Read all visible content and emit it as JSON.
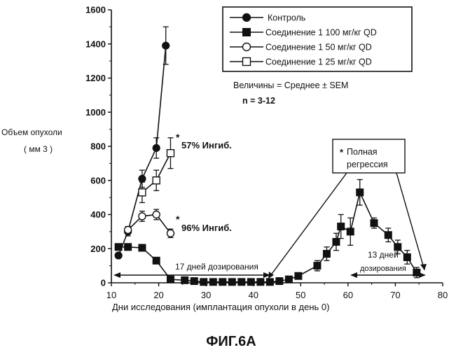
{
  "figure_label": "ФИГ.6А",
  "chart_data": {
    "type": "line",
    "xlabel": "Дни исследования (имплантация опухоли в день 0)",
    "ylabel": "Объем опухоли",
    "ylabel_unit": "( мм 3 )",
    "xlim": [
      10,
      80
    ],
    "ylim": [
      0,
      1600
    ],
    "x_ticks": [
      10,
      20,
      30,
      40,
      50,
      60,
      70,
      80
    ],
    "y_ticks": [
      0,
      200,
      400,
      600,
      800,
      1000,
      1200,
      1400,
      1600
    ],
    "legend_position": "top-right",
    "stats_note": "Величины = Среднее ± SEM",
    "n_note": "n = 3-12",
    "series": [
      {
        "name": "Контроль",
        "marker": "filled-circle",
        "x": [
          11.5,
          13.5,
          16.5,
          19.5,
          21.5
        ],
        "y": [
          160,
          300,
          610,
          790,
          1390
        ],
        "err": [
          15,
          25,
          50,
          60,
          110
        ]
      },
      {
        "name": "Соединение 1 100 мг/кг QD",
        "marker": "filled-square",
        "x": [
          11.5,
          13.5,
          16.5,
          19.5,
          22.5,
          25.5,
          27.5,
          29.5,
          31.5,
          33.5,
          35.5,
          37.5,
          39.5,
          41.5,
          43.5,
          45.5,
          47.5,
          49.5,
          53.5,
          55.5,
          57.5,
          58.5,
          60.5,
          62.5,
          65.5,
          68.5,
          70.5,
          72.5,
          74.5
        ],
        "y": [
          210,
          210,
          205,
          130,
          20,
          15,
          10,
          5,
          5,
          5,
          5,
          5,
          5,
          5,
          5,
          10,
          20,
          40,
          100,
          170,
          240,
          330,
          300,
          530,
          350,
          280,
          210,
          150,
          60
        ],
        "err": [
          10,
          10,
          10,
          10,
          5,
          5,
          5,
          5,
          5,
          5,
          5,
          5,
          5,
          5,
          5,
          5,
          5,
          10,
          30,
          40,
          50,
          70,
          80,
          75,
          30,
          40,
          40,
          40,
          30
        ]
      },
      {
        "name": "Соединение 1 50 мг/кг QD",
        "marker": "open-circle",
        "x": [
          13.5,
          16.5,
          19.5,
          22.5
        ],
        "y": [
          310,
          390,
          400,
          290
        ],
        "err": [
          20,
          30,
          30,
          25
        ]
      },
      {
        "name": "Соединение 1 25 мг/кг QD",
        "marker": "open-square",
        "x": [
          16.5,
          19.5,
          22.5
        ],
        "y": [
          530,
          600,
          760
        ],
        "err": [
          60,
          60,
          90
        ]
      }
    ],
    "annotations": {
      "inhib_57": "57% Ингиб.",
      "inhib_96": "96% Ингиб.",
      "dosing_17": "17 дней дозирования",
      "dosing_13_num": "13 дней",
      "dosing_13_text": "дозирования",
      "regression_line1": "Полная",
      "regression_line2": "регрессия",
      "asterisk": "*"
    }
  }
}
